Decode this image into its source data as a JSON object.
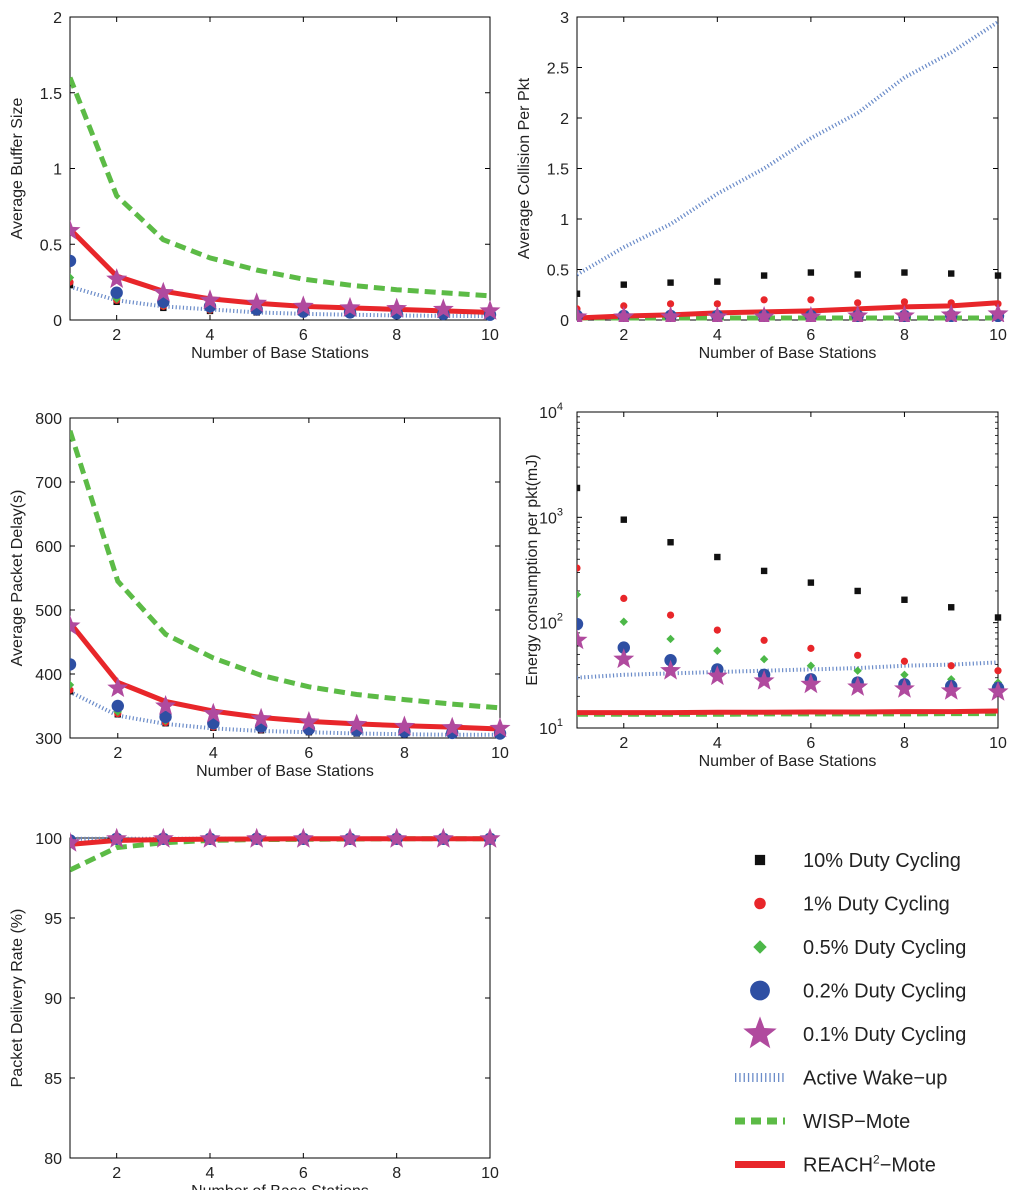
{
  "x_ticks": [
    2,
    4,
    6,
    8,
    10
  ],
  "series_styles": {
    "10% Duty Cycling": {
      "kind": "marker",
      "shape": "square",
      "color": "#111111"
    },
    "1% Duty Cycling": {
      "kind": "marker",
      "shape": "dot",
      "color": "#e8262a"
    },
    "0.5% Duty Cycling": {
      "kind": "marker",
      "shape": "diamond",
      "color": "#4cb848"
    },
    "0.2% Duty Cycling": {
      "kind": "marker",
      "shape": "circle",
      "color": "#2e4fa3"
    },
    "0.1% Duty Cycling": {
      "kind": "marker",
      "shape": "star",
      "color": "#b04a9e"
    },
    "Active Wake-up": {
      "kind": "line",
      "style": "dotted",
      "color": "#6b8cc9"
    },
    "WISP-Mote": {
      "kind": "line",
      "style": "dashed",
      "color": "#5cbb46"
    },
    "REACH2-Mote": {
      "kind": "line",
      "style": "solid",
      "color": "#e8262a"
    }
  },
  "legend": {
    "items": [
      {
        "series": "10% Duty Cycling",
        "label": "10% Duty Cycling"
      },
      {
        "series": "1% Duty Cycling",
        "label": "1% Duty Cycling"
      },
      {
        "series": "0.5% Duty Cycling",
        "label": "0.5% Duty Cycling"
      },
      {
        "series": "0.2% Duty Cycling",
        "label": "0.2% Duty Cycling"
      },
      {
        "series": "0.1% Duty Cycling",
        "label": "0.1% Duty Cycling"
      },
      {
        "series": "Active Wake-up",
        "label": "Active Wake−up"
      },
      {
        "series": "WISP-Mote",
        "label": "WISP−Mote"
      },
      {
        "series": "REACH2-Mote",
        "label_main": "REACH",
        "label_sup": "2",
        "label_tail": "−Mote"
      }
    ]
  },
  "chart_data": [
    {
      "id": "buffer",
      "type": "line",
      "xlabel": "Number of Base Stations",
      "ylabel": "Average Buffer Size",
      "xlim": [
        1,
        10
      ],
      "ylim": [
        0,
        2
      ],
      "yscale": "linear",
      "y_ticks": [
        0,
        0.5,
        1,
        1.5,
        2
      ],
      "y_tick_labels": [
        "0",
        "0.5",
        "1",
        "1.5",
        "2"
      ],
      "x": [
        1,
        2,
        3,
        4,
        5,
        6,
        7,
        8,
        9,
        10
      ],
      "series": [
        {
          "name": "Active Wake-up",
          "values": [
            0.22,
            0.13,
            0.09,
            0.07,
            0.05,
            0.04,
            0.035,
            0.03,
            0.028,
            0.025
          ]
        },
        {
          "name": "WISP-Mote",
          "values": [
            1.6,
            0.82,
            0.53,
            0.41,
            0.33,
            0.27,
            0.23,
            0.2,
            0.18,
            0.16
          ]
        },
        {
          "name": "REACH2-Mote",
          "values": [
            0.6,
            0.29,
            0.19,
            0.14,
            0.11,
            0.09,
            0.08,
            0.07,
            0.06,
            0.05
          ]
        },
        {
          "name": "10% Duty Cycling",
          "values": [
            0.23,
            0.12,
            0.08,
            0.06,
            0.05,
            0.04,
            0.035,
            0.03,
            0.028,
            0.025
          ]
        },
        {
          "name": "1% Duty Cycling",
          "values": [
            0.25,
            0.13,
            0.09,
            0.065,
            0.052,
            0.043,
            0.037,
            0.032,
            0.029,
            0.026
          ]
        },
        {
          "name": "0.5% Duty Cycling",
          "values": [
            0.28,
            0.14,
            0.1,
            0.07,
            0.056,
            0.046,
            0.04,
            0.034,
            0.031,
            0.028
          ]
        },
        {
          "name": "0.2% Duty Cycling",
          "values": [
            0.39,
            0.18,
            0.12,
            0.09,
            0.07,
            0.055,
            0.05,
            0.045,
            0.04,
            0.035
          ]
        },
        {
          "name": "0.1% Duty Cycling",
          "values": [
            0.59,
            0.27,
            0.18,
            0.13,
            0.11,
            0.09,
            0.08,
            0.075,
            0.07,
            0.06
          ]
        }
      ]
    },
    {
      "id": "collision",
      "type": "line",
      "xlabel": "Number of Base Stations",
      "ylabel": "Average Collision Per Pkt",
      "xlim": [
        1,
        10
      ],
      "ylim": [
        0,
        3
      ],
      "yscale": "linear",
      "y_ticks": [
        0,
        0.5,
        1,
        1.5,
        2,
        2.5,
        3
      ],
      "y_tick_labels": [
        "0",
        "0.5",
        "1",
        "1.5",
        "2",
        "2.5",
        "3"
      ],
      "x": [
        1,
        2,
        3,
        4,
        5,
        6,
        7,
        8,
        9,
        10
      ],
      "series": [
        {
          "name": "Active Wake-up",
          "values": [
            0.45,
            0.72,
            0.95,
            1.25,
            1.5,
            1.8,
            2.05,
            2.4,
            2.65,
            2.95
          ]
        },
        {
          "name": "WISP-Mote",
          "values": [
            0.02,
            0.02,
            0.02,
            0.02,
            0.02,
            0.02,
            0.02,
            0.02,
            0.02,
            0.02
          ]
        },
        {
          "name": "REACH2-Mote",
          "values": [
            0.02,
            0.04,
            0.05,
            0.07,
            0.08,
            0.09,
            0.11,
            0.13,
            0.14,
            0.17
          ]
        },
        {
          "name": "10% Duty Cycling",
          "values": [
            0.26,
            0.35,
            0.37,
            0.38,
            0.44,
            0.47,
            0.45,
            0.47,
            0.46,
            0.44
          ]
        },
        {
          "name": "1% Duty Cycling",
          "values": [
            0.11,
            0.14,
            0.16,
            0.16,
            0.2,
            0.2,
            0.17,
            0.18,
            0.17,
            0.16
          ]
        },
        {
          "name": "0.5% Duty Cycling",
          "values": [
            0.06,
            0.06,
            0.06,
            0.06,
            0.07,
            0.07,
            0.07,
            0.07,
            0.07,
            0.07
          ]
        },
        {
          "name": "0.2% Duty Cycling",
          "values": [
            0.04,
            0.04,
            0.04,
            0.04,
            0.04,
            0.04,
            0.04,
            0.04,
            0.04,
            0.04
          ]
        },
        {
          "name": "0.1% Duty Cycling",
          "values": [
            0.03,
            0.03,
            0.03,
            0.03,
            0.03,
            0.03,
            0.04,
            0.04,
            0.05,
            0.06
          ]
        }
      ]
    },
    {
      "id": "delay",
      "type": "line",
      "xlabel": "Number of Base Stations",
      "ylabel": "Average Packet Delay(s)",
      "xlim": [
        1,
        10
      ],
      "ylim": [
        300,
        800
      ],
      "yscale": "linear",
      "y_ticks": [
        300,
        400,
        500,
        600,
        700,
        800
      ],
      "y_tick_labels": [
        "300",
        "400",
        "500",
        "600",
        "700",
        "800"
      ],
      "x": [
        1,
        2,
        3,
        4,
        5,
        6,
        7,
        8,
        9,
        10
      ],
      "series": [
        {
          "name": "Active Wake-up",
          "values": [
            372,
            335,
            322,
            315,
            311,
            309,
            307,
            306,
            305,
            305
          ]
        },
        {
          "name": "WISP-Mote",
          "values": [
            780,
            545,
            462,
            425,
            398,
            380,
            368,
            360,
            353,
            347
          ]
        },
        {
          "name": "REACH2-Mote",
          "values": [
            480,
            387,
            357,
            342,
            332,
            326,
            322,
            319,
            317,
            314
          ]
        },
        {
          "name": "10% Duty Cycling",
          "values": [
            373,
            337,
            323,
            316,
            312,
            309,
            307,
            306,
            305,
            304
          ]
        },
        {
          "name": "1% Duty Cycling",
          "values": [
            375,
            338,
            324,
            317,
            313,
            310,
            308,
            307,
            306,
            305
          ]
        },
        {
          "name": "0.5% Duty Cycling",
          "values": [
            383,
            341,
            327,
            319,
            315,
            312,
            310,
            308,
            307,
            306
          ]
        },
        {
          "name": "0.2% Duty Cycling",
          "values": [
            415,
            350,
            333,
            323,
            318,
            314,
            312,
            310,
            308,
            307
          ]
        },
        {
          "name": "0.1% Duty Cycling",
          "values": [
            475,
            378,
            350,
            338,
            330,
            325,
            321,
            318,
            316,
            315
          ]
        }
      ]
    },
    {
      "id": "energy",
      "type": "line",
      "xlabel": "Number of Base Stations",
      "ylabel": "Energy consumption per pkt(mJ)",
      "xlim": [
        1,
        10
      ],
      "ylim": [
        10,
        10000
      ],
      "yscale": "log",
      "y_ticks": [
        10,
        100,
        1000,
        10000
      ],
      "y_tick_labels": [
        {
          "base": "10",
          "exp": "1"
        },
        {
          "base": "10",
          "exp": "2"
        },
        {
          "base": "10",
          "exp": "3"
        },
        {
          "base": "10",
          "exp": "4"
        }
      ],
      "x": [
        1,
        2,
        3,
        4,
        5,
        6,
        7,
        8,
        9,
        10
      ],
      "series": [
        {
          "name": "Active Wake-up",
          "values": [
            30,
            32,
            33,
            34,
            35,
            36,
            37,
            39,
            40,
            42
          ]
        },
        {
          "name": "WISP-Mote",
          "values": [
            13.5,
            13.5,
            13.5,
            13.5,
            13.6,
            13.6,
            13.6,
            13.6,
            13.7,
            13.7
          ]
        },
        {
          "name": "REACH2-Mote",
          "values": [
            14,
            14,
            14,
            14.1,
            14.1,
            14.2,
            14.2,
            14.3,
            14.3,
            14.5
          ]
        },
        {
          "name": "10% Duty Cycling",
          "values": [
            1900,
            950,
            580,
            420,
            310,
            240,
            200,
            165,
            140,
            112
          ]
        },
        {
          "name": "1% Duty Cycling",
          "values": [
            330,
            170,
            118,
            85,
            68,
            57,
            49,
            43,
            39,
            35
          ]
        },
        {
          "name": "0.5% Duty Cycling",
          "values": [
            185,
            102,
            70,
            54,
            45,
            39,
            35,
            32,
            29,
            27
          ]
        },
        {
          "name": "0.2% Duty Cycling",
          "values": [
            97,
            58,
            44,
            36,
            32,
            29,
            27,
            26,
            25,
            24
          ]
        },
        {
          "name": "0.1% Duty Cycling",
          "values": [
            68,
            45,
            35,
            31,
            28,
            26,
            24.5,
            23.5,
            22.5,
            22
          ]
        }
      ]
    },
    {
      "id": "delivery",
      "type": "line",
      "xlabel": "Number of Base Stations",
      "ylabel": "Packet Delivery Rate (%)",
      "xlim": [
        1,
        10
      ],
      "ylim": [
        80,
        100
      ],
      "yscale": "linear",
      "y_ticks": [
        80,
        85,
        90,
        95,
        100
      ],
      "y_tick_labels": [
        "80",
        "85",
        "90",
        "95",
        "100"
      ],
      "x": [
        1,
        2,
        3,
        4,
        5,
        6,
        7,
        8,
        9,
        10
      ],
      "series": [
        {
          "name": "Active Wake-up",
          "values": [
            99.95,
            99.95,
            99.95,
            99.95,
            99.95,
            99.95,
            99.95,
            99.95,
            99.95,
            99.95
          ]
        },
        {
          "name": "WISP-Mote",
          "values": [
            98,
            99.4,
            99.7,
            99.85,
            99.9,
            99.92,
            99.94,
            99.95,
            99.95,
            99.95
          ]
        },
        {
          "name": "REACH2-Mote",
          "values": [
            99.6,
            99.85,
            99.9,
            99.93,
            99.94,
            99.95,
            99.95,
            99.95,
            99.95,
            99.95
          ]
        },
        {
          "name": "10% Duty Cycling",
          "values": [
            99.9,
            99.95,
            99.95,
            99.95,
            99.95,
            99.95,
            99.95,
            99.95,
            99.95,
            99.95
          ]
        },
        {
          "name": "1% Duty Cycling",
          "values": [
            99.9,
            99.95,
            99.95,
            99.95,
            99.95,
            99.95,
            99.95,
            99.95,
            99.95,
            99.95
          ]
        },
        {
          "name": "0.5% Duty Cycling",
          "values": [
            99.9,
            99.95,
            99.95,
            99.95,
            99.95,
            99.95,
            99.95,
            99.95,
            99.95,
            99.95
          ]
        },
        {
          "name": "0.2% Duty Cycling",
          "values": [
            99.85,
            99.95,
            99.95,
            99.95,
            99.95,
            99.95,
            99.95,
            99.95,
            99.95,
            99.95
          ]
        },
        {
          "name": "0.1% Duty Cycling",
          "values": [
            99.7,
            99.95,
            99.95,
            99.95,
            99.95,
            99.95,
            99.95,
            99.95,
            99.95,
            99.95
          ]
        }
      ]
    }
  ]
}
